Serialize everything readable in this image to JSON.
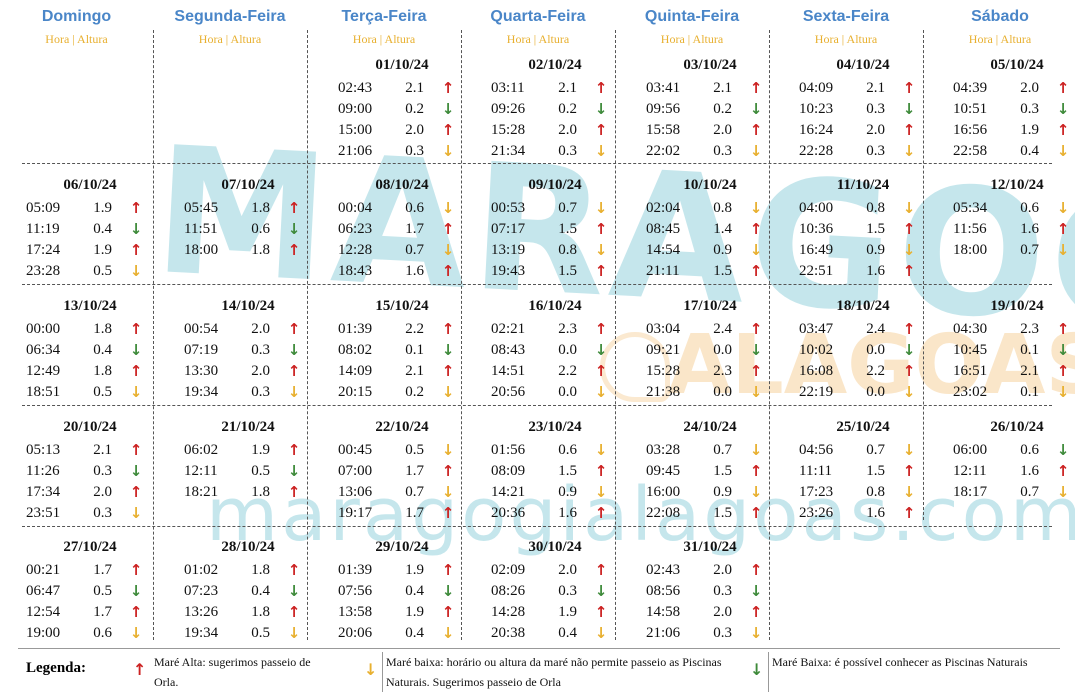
{
  "header": {
    "days": [
      "Domingo",
      "Segunda-Feira",
      "Terça-Feira",
      "Quarta-Feira",
      "Quinta-Feira",
      "Sexta-Feira",
      "Sábado"
    ],
    "subheader": "Hora | Altura"
  },
  "watermark": {
    "brand": "MARAGOGI",
    "region": "ALAGOAS",
    "site": "maragogialagoas.com"
  },
  "weeks": [
    [
      null,
      null,
      {
        "date": "01/10/24",
        "tides": [
          {
            "time": "02:43",
            "height": "2.1",
            "type": "up"
          },
          {
            "time": "09:00",
            "height": "0.2",
            "type": "down-green"
          },
          {
            "time": "15:00",
            "height": "2.0",
            "type": "up"
          },
          {
            "time": "21:06",
            "height": "0.3",
            "type": "down-yellow"
          }
        ]
      },
      {
        "date": "02/10/24",
        "tides": [
          {
            "time": "03:11",
            "height": "2.1",
            "type": "up"
          },
          {
            "time": "09:26",
            "height": "0.2",
            "type": "down-green"
          },
          {
            "time": "15:28",
            "height": "2.0",
            "type": "up"
          },
          {
            "time": "21:34",
            "height": "0.3",
            "type": "down-yellow"
          }
        ]
      },
      {
        "date": "03/10/24",
        "tides": [
          {
            "time": "03:41",
            "height": "2.1",
            "type": "up"
          },
          {
            "time": "09:56",
            "height": "0.2",
            "type": "down-green"
          },
          {
            "time": "15:58",
            "height": "2.0",
            "type": "up"
          },
          {
            "time": "22:02",
            "height": "0.3",
            "type": "down-yellow"
          }
        ]
      },
      {
        "date": "04/10/24",
        "tides": [
          {
            "time": "04:09",
            "height": "2.1",
            "type": "up"
          },
          {
            "time": "10:23",
            "height": "0.3",
            "type": "down-green"
          },
          {
            "time": "16:24",
            "height": "2.0",
            "type": "up"
          },
          {
            "time": "22:28",
            "height": "0.3",
            "type": "down-yellow"
          }
        ]
      },
      {
        "date": "05/10/24",
        "tides": [
          {
            "time": "04:39",
            "height": "2.0",
            "type": "up"
          },
          {
            "time": "10:51",
            "height": "0.3",
            "type": "down-green"
          },
          {
            "time": "16:56",
            "height": "1.9",
            "type": "up"
          },
          {
            "time": "22:58",
            "height": "0.4",
            "type": "down-yellow"
          }
        ]
      }
    ],
    [
      {
        "date": "06/10/24",
        "tides": [
          {
            "time": "05:09",
            "height": "1.9",
            "type": "up"
          },
          {
            "time": "11:19",
            "height": "0.4",
            "type": "down-green"
          },
          {
            "time": "17:24",
            "height": "1.9",
            "type": "up"
          },
          {
            "time": "23:28",
            "height": "0.5",
            "type": "down-yellow"
          }
        ]
      },
      {
        "date": "07/10/24",
        "tides": [
          {
            "time": "05:45",
            "height": "1.8",
            "type": "up"
          },
          {
            "time": "11:51",
            "height": "0.6",
            "type": "down-green"
          },
          {
            "time": "18:00",
            "height": "1.8",
            "type": "up"
          }
        ]
      },
      {
        "date": "08/10/24",
        "tides": [
          {
            "time": "00:04",
            "height": "0.6",
            "type": "down-yellow"
          },
          {
            "time": "06:23",
            "height": "1.7",
            "type": "up"
          },
          {
            "time": "12:28",
            "height": "0.7",
            "type": "down-yellow"
          },
          {
            "time": "18:43",
            "height": "1.6",
            "type": "up"
          }
        ]
      },
      {
        "date": "09/10/24",
        "tides": [
          {
            "time": "00:53",
            "height": "0.7",
            "type": "down-yellow"
          },
          {
            "time": "07:17",
            "height": "1.5",
            "type": "up"
          },
          {
            "time": "13:19",
            "height": "0.8",
            "type": "down-yellow"
          },
          {
            "time": "19:43",
            "height": "1.5",
            "type": "up"
          }
        ]
      },
      {
        "date": "10/10/24",
        "tides": [
          {
            "time": "02:04",
            "height": "0.8",
            "type": "down-yellow"
          },
          {
            "time": "08:45",
            "height": "1.4",
            "type": "up"
          },
          {
            "time": "14:54",
            "height": "0.9",
            "type": "down-yellow"
          },
          {
            "time": "21:11",
            "height": "1.5",
            "type": "up"
          }
        ]
      },
      {
        "date": "11/10/24",
        "tides": [
          {
            "time": "04:00",
            "height": "0.8",
            "type": "down-yellow"
          },
          {
            "time": "10:36",
            "height": "1.5",
            "type": "up"
          },
          {
            "time": "16:49",
            "height": "0.9",
            "type": "down-yellow"
          },
          {
            "time": "22:51",
            "height": "1.6",
            "type": "up"
          }
        ]
      },
      {
        "date": "12/10/24",
        "tides": [
          {
            "time": "05:34",
            "height": "0.6",
            "type": "down-yellow"
          },
          {
            "time": "11:56",
            "height": "1.6",
            "type": "up"
          },
          {
            "time": "18:00",
            "height": "0.7",
            "type": "down-yellow"
          }
        ]
      }
    ],
    [
      {
        "date": "13/10/24",
        "tides": [
          {
            "time": "00:00",
            "height": "1.8",
            "type": "up"
          },
          {
            "time": "06:34",
            "height": "0.4",
            "type": "down-green"
          },
          {
            "time": "12:49",
            "height": "1.8",
            "type": "up"
          },
          {
            "time": "18:51",
            "height": "0.5",
            "type": "down-yellow"
          }
        ]
      },
      {
        "date": "14/10/24",
        "tides": [
          {
            "time": "00:54",
            "height": "2.0",
            "type": "up"
          },
          {
            "time": "07:19",
            "height": "0.3",
            "type": "down-green"
          },
          {
            "time": "13:30",
            "height": "2.0",
            "type": "up"
          },
          {
            "time": "19:34",
            "height": "0.3",
            "type": "down-yellow"
          }
        ]
      },
      {
        "date": "15/10/24",
        "tides": [
          {
            "time": "01:39",
            "height": "2.2",
            "type": "up"
          },
          {
            "time": "08:02",
            "height": "0.1",
            "type": "down-green"
          },
          {
            "time": "14:09",
            "height": "2.1",
            "type": "up"
          },
          {
            "time": "20:15",
            "height": "0.2",
            "type": "down-yellow"
          }
        ]
      },
      {
        "date": "16/10/24",
        "tides": [
          {
            "time": "02:21",
            "height": "2.3",
            "type": "up"
          },
          {
            "time": "08:43",
            "height": "0.0",
            "type": "down-green"
          },
          {
            "time": "14:51",
            "height": "2.2",
            "type": "up"
          },
          {
            "time": "20:56",
            "height": "0.0",
            "type": "down-yellow"
          }
        ]
      },
      {
        "date": "17/10/24",
        "tides": [
          {
            "time": "03:04",
            "height": "2.4",
            "type": "up"
          },
          {
            "time": "09:21",
            "height": "0.0",
            "type": "down-green"
          },
          {
            "time": "15:28",
            "height": "2.3",
            "type": "up"
          },
          {
            "time": "21:38",
            "height": "0.0",
            "type": "down-yellow"
          }
        ]
      },
      {
        "date": "18/10/24",
        "tides": [
          {
            "time": "03:47",
            "height": "2.4",
            "type": "up"
          },
          {
            "time": "10:02",
            "height": "0.0",
            "type": "down-green"
          },
          {
            "time": "16:08",
            "height": "2.2",
            "type": "up"
          },
          {
            "time": "22:19",
            "height": "0.0",
            "type": "down-yellow"
          }
        ]
      },
      {
        "date": "19/10/24",
        "tides": [
          {
            "time": "04:30",
            "height": "2.3",
            "type": "up"
          },
          {
            "time": "10:45",
            "height": "0.1",
            "type": "down-green"
          },
          {
            "time": "16:51",
            "height": "2.1",
            "type": "up"
          },
          {
            "time": "23:02",
            "height": "0.1",
            "type": "down-yellow"
          }
        ]
      }
    ],
    [
      {
        "date": "20/10/24",
        "tides": [
          {
            "time": "05:13",
            "height": "2.1",
            "type": "up"
          },
          {
            "time": "11:26",
            "height": "0.3",
            "type": "down-green"
          },
          {
            "time": "17:34",
            "height": "2.0",
            "type": "up"
          },
          {
            "time": "23:51",
            "height": "0.3",
            "type": "down-yellow"
          }
        ]
      },
      {
        "date": "21/10/24",
        "tides": [
          {
            "time": "06:02",
            "height": "1.9",
            "type": "up"
          },
          {
            "time": "12:11",
            "height": "0.5",
            "type": "down-green"
          },
          {
            "time": "18:21",
            "height": "1.8",
            "type": "up"
          }
        ]
      },
      {
        "date": "22/10/24",
        "tides": [
          {
            "time": "00:45",
            "height": "0.5",
            "type": "down-yellow"
          },
          {
            "time": "07:00",
            "height": "1.7",
            "type": "up"
          },
          {
            "time": "13:06",
            "height": "0.7",
            "type": "down-yellow"
          },
          {
            "time": "19:17",
            "height": "1.7",
            "type": "up"
          }
        ]
      },
      {
        "date": "23/10/24",
        "tides": [
          {
            "time": "01:56",
            "height": "0.6",
            "type": "down-yellow"
          },
          {
            "time": "08:09",
            "height": "1.5",
            "type": "up"
          },
          {
            "time": "14:21",
            "height": "0.9",
            "type": "down-yellow"
          },
          {
            "time": "20:36",
            "height": "1.6",
            "type": "up"
          }
        ]
      },
      {
        "date": "24/10/24",
        "tides": [
          {
            "time": "03:28",
            "height": "0.7",
            "type": "down-yellow"
          },
          {
            "time": "09:45",
            "height": "1.5",
            "type": "up"
          },
          {
            "time": "16:00",
            "height": "0.9",
            "type": "down-yellow"
          },
          {
            "time": "22:08",
            "height": "1.5",
            "type": "up"
          }
        ]
      },
      {
        "date": "25/10/24",
        "tides": [
          {
            "time": "04:56",
            "height": "0.7",
            "type": "down-yellow"
          },
          {
            "time": "11:11",
            "height": "1.5",
            "type": "up"
          },
          {
            "time": "17:23",
            "height": "0.8",
            "type": "down-yellow"
          },
          {
            "time": "23:26",
            "height": "1.6",
            "type": "up"
          }
        ]
      },
      {
        "date": "26/10/24",
        "tides": [
          {
            "time": "06:00",
            "height": "0.6",
            "type": "down-green"
          },
          {
            "time": "12:11",
            "height": "1.6",
            "type": "up"
          },
          {
            "time": "18:17",
            "height": "0.7",
            "type": "down-yellow"
          }
        ]
      }
    ],
    [
      {
        "date": "27/10/24",
        "tides": [
          {
            "time": "00:21",
            "height": "1.7",
            "type": "up"
          },
          {
            "time": "06:47",
            "height": "0.5",
            "type": "down-green"
          },
          {
            "time": "12:54",
            "height": "1.7",
            "type": "up"
          },
          {
            "time": "19:00",
            "height": "0.6",
            "type": "down-yellow"
          }
        ]
      },
      {
        "date": "28/10/24",
        "tides": [
          {
            "time": "01:02",
            "height": "1.8",
            "type": "up"
          },
          {
            "time": "07:23",
            "height": "0.4",
            "type": "down-green"
          },
          {
            "time": "13:26",
            "height": "1.8",
            "type": "up"
          },
          {
            "time": "19:34",
            "height": "0.5",
            "type": "down-yellow"
          }
        ]
      },
      {
        "date": "29/10/24",
        "tides": [
          {
            "time": "01:39",
            "height": "1.9",
            "type": "up"
          },
          {
            "time": "07:56",
            "height": "0.4",
            "type": "down-green"
          },
          {
            "time": "13:58",
            "height": "1.9",
            "type": "up"
          },
          {
            "time": "20:06",
            "height": "0.4",
            "type": "down-yellow"
          }
        ]
      },
      {
        "date": "30/10/24",
        "tides": [
          {
            "time": "02:09",
            "height": "2.0",
            "type": "up"
          },
          {
            "time": "08:26",
            "height": "0.3",
            "type": "down-green"
          },
          {
            "time": "14:28",
            "height": "1.9",
            "type": "up"
          },
          {
            "time": "20:38",
            "height": "0.4",
            "type": "down-yellow"
          }
        ]
      },
      {
        "date": "31/10/24",
        "tides": [
          {
            "time": "02:43",
            "height": "2.0",
            "type": "up"
          },
          {
            "time": "08:56",
            "height": "0.3",
            "type": "down-green"
          },
          {
            "time": "14:58",
            "height": "2.0",
            "type": "up"
          },
          {
            "time": "21:06",
            "height": "0.3",
            "type": "down-yellow"
          }
        ]
      },
      null,
      null
    ]
  ],
  "legend": {
    "title": "Legenda:",
    "high": "Maré Alta: sugerimos passeio de Orla.",
    "low_yellow": "Maré baixa: horário ou altura da maré não permite passeio as Piscinas Naturais. Sugerimos passeio de Orla",
    "low_green": "Maré Baixa: é possível conhecer as Piscinas Naturais"
  },
  "colors": {
    "title_blue": "#4a86c8",
    "subheader_gold": "#e8b030",
    "high": "#cc2222",
    "low_yellow": "#e8b030",
    "low_green": "#3e8a3a"
  },
  "icons": {
    "up": "arrow-up-icon",
    "down-yellow": "arrow-down-yellow-icon",
    "down-green": "arrow-down-green-icon"
  }
}
